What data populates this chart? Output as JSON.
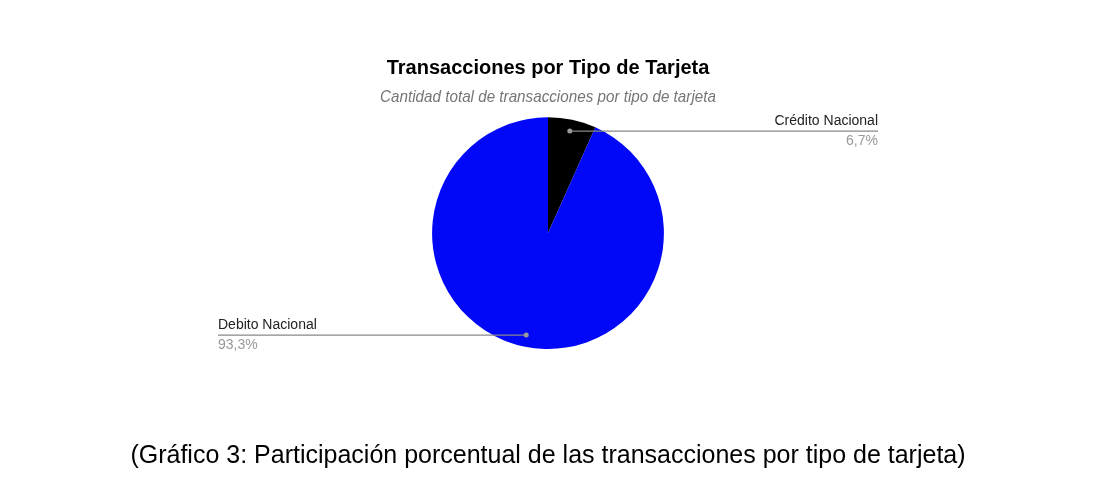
{
  "chart_data": {
    "type": "pie",
    "title": "Transacciones por Tipo de Tarjeta",
    "subtitle": "Cantidad total de transacciones por tipo de tarjeta",
    "categories": [
      "Crédito Nacional",
      "Debito Nacional"
    ],
    "values": [
      6.7,
      93.3
    ],
    "colors": [
      "#000000",
      "#0008f7"
    ],
    "value_labels": [
      "6,7%",
      "93,3%"
    ],
    "legend": false,
    "annotations": [
      "(Gráfico 3: Participación porcentual de las transacciones por tipo de tarjeta)"
    ]
  }
}
